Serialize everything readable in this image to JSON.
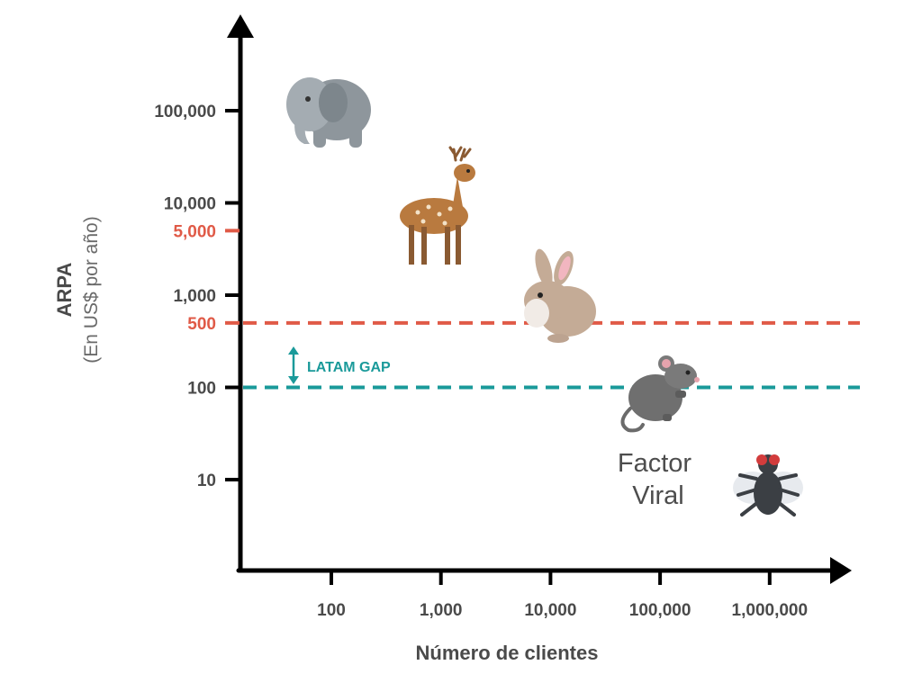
{
  "chart_data": {
    "type": "scatter",
    "xlabel": "Número de clientes",
    "ylabel": "ARPA",
    "ylabel_sub": "(En US$ por año)",
    "x_scale": "log",
    "y_scale": "log",
    "x_ticks": [
      {
        "value": 100,
        "label": "100"
      },
      {
        "value": 1000,
        "label": "1,000"
      },
      {
        "value": 10000,
        "label": "10,000"
      },
      {
        "value": 100000,
        "label": "100,000"
      },
      {
        "value": 1000000,
        "label": "1,000,000"
      }
    ],
    "y_ticks": [
      {
        "value": 10,
        "label": "10",
        "accent": false
      },
      {
        "value": 100,
        "label": "100",
        "accent": false
      },
      {
        "value": 500,
        "label": "500",
        "accent": true
      },
      {
        "value": 1000,
        "label": "1,000",
        "accent": false
      },
      {
        "value": 5000,
        "label": "5,000",
        "accent": true
      },
      {
        "value": 10000,
        "label": "10,000",
        "accent": false
      },
      {
        "value": 100000,
        "label": "100,000",
        "accent": false
      }
    ],
    "reference_lines": [
      {
        "y": 500,
        "color": "#e05a47",
        "style": "dashed"
      },
      {
        "y": 100,
        "color": "#1a9a9a",
        "style": "dashed"
      }
    ],
    "gap_annotation": {
      "label": "LATAM GAP",
      "from": 100,
      "to": 500,
      "color": "#1a9a9a"
    },
    "points": [
      {
        "icon": "elephant-icon",
        "x": 80,
        "y": 80000
      },
      {
        "icon": "deer-icon",
        "x": 1000,
        "y": 8000
      },
      {
        "icon": "rabbit-icon",
        "x": 10000,
        "y": 900
      },
      {
        "icon": "mouse-icon",
        "x": 100000,
        "y": 100
      },
      {
        "icon": "fly-icon",
        "x": 1000000,
        "y": 10
      }
    ],
    "annotation_text": "Factor\nViral",
    "grid": false,
    "legend": "none",
    "colors": {
      "axis": "#000000",
      "text": "#4a4a4a",
      "accent": "#e05a47",
      "teal": "#1a9a9a"
    }
  }
}
